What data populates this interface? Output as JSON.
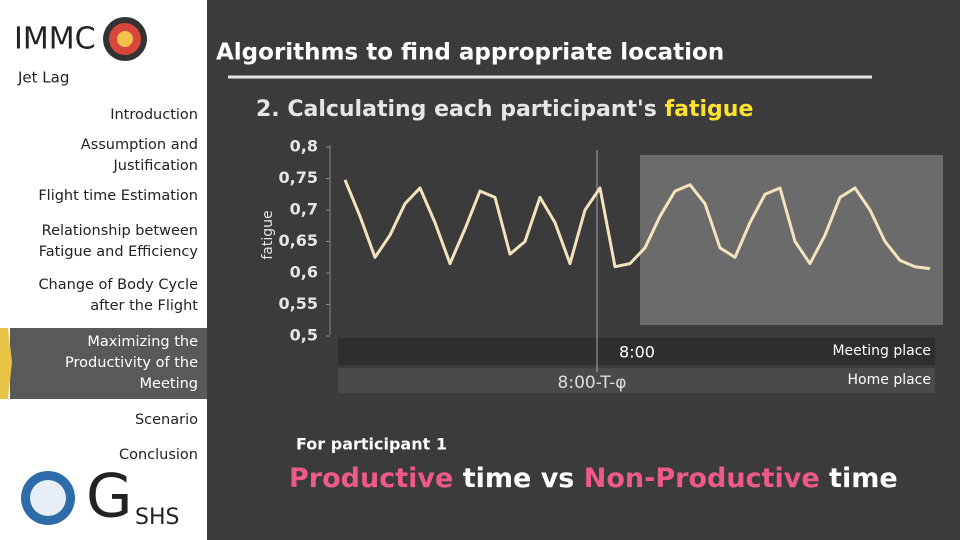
{
  "sidebar": {
    "brand": "IMMC",
    "subtitle": "Jet Lag",
    "items": [
      [
        "Introduction"
      ],
      [
        "Assumption and",
        "Justification"
      ],
      [
        "Flight time Estimation"
      ],
      [
        "Relationship between",
        "Fatigue and Efficiency"
      ],
      [
        "Change of Body Cycle",
        "after the Flight"
      ],
      [
        "Maximizing the",
        "Productivity of the",
        "Meeting"
      ],
      [
        "Scenario"
      ],
      [
        "Conclusion"
      ]
    ],
    "active": 5,
    "school_initial": "G",
    "school_rest": "SHS"
  },
  "header": {
    "title": "Algorithms to find appropriate location",
    "section": "2. Calculating each participant's",
    "section_highlight": "fatigue"
  },
  "chart_data": {
    "type": "line",
    "y_label": "fatigue",
    "color": "#f3e3bf",
    "ylim": [
      0.5,
      0.8
    ],
    "yticks": [
      {
        "value": 0.8,
        "label": "0,8"
      },
      {
        "value": 0.75,
        "label": "0,75"
      },
      {
        "value": 0.7,
        "label": "0,7"
      },
      {
        "value": 0.65,
        "label": "0,65"
      },
      {
        "value": 0.6,
        "label": "0,6"
      },
      {
        "value": 0.55,
        "label": "0,55"
      },
      {
        "value": 0.5,
        "label": "0,5"
      }
    ],
    "values": [
      0.748,
      0.69,
      0.625,
      0.66,
      0.71,
      0.735,
      0.68,
      0.615,
      0.67,
      0.73,
      0.72,
      0.63,
      0.65,
      0.72,
      0.68,
      0.615,
      0.7,
      0.735,
      0.61,
      0.615,
      0.64,
      0.69,
      0.73,
      0.74,
      0.71,
      0.64,
      0.625,
      0.68,
      0.725,
      0.735,
      0.65,
      0.615,
      0.66,
      0.72,
      0.735,
      0.7,
      0.65,
      0.62,
      0.61,
      0.607
    ],
    "annotations": {
      "meeting_time": "8:00",
      "meeting_place": "Meeting place",
      "home_time": "8:00-T-φ",
      "home_place": "Home place"
    }
  },
  "footer": {
    "note": "For participant 1",
    "parts": [
      "Productive",
      "time",
      "vs",
      "Non-Productive",
      "time"
    ]
  }
}
